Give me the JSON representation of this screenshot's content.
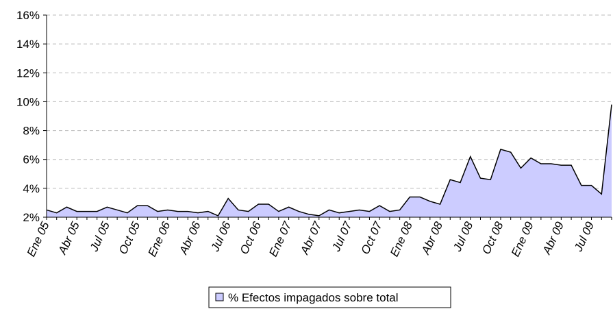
{
  "chart_data": {
    "type": "area",
    "categories": [
      "Ene 05",
      null,
      null,
      "Abr 05",
      null,
      null,
      "Jul 05",
      null,
      null,
      "Oct 05",
      null,
      null,
      "Ene 06",
      null,
      null,
      "Abr 06",
      null,
      null,
      "Jul 06",
      null,
      null,
      "Oct 06",
      null,
      null,
      "Ene 07",
      null,
      null,
      "Abr 07",
      null,
      null,
      "Jul 07",
      null,
      null,
      "Oct 07",
      null,
      null,
      "Ene 08",
      null,
      null,
      "Abr 08",
      null,
      null,
      "Jul 08",
      null,
      null,
      "Oct 08",
      null,
      null,
      "Ene 09",
      null,
      null,
      "Abr 09",
      null,
      null,
      "Jul 09",
      null,
      null
    ],
    "series": [
      {
        "name": "% Efectos impagados sobre total",
        "color": "#ccccff",
        "line_color": "#000000",
        "values": [
          2.5,
          2.3,
          2.7,
          2.4,
          2.4,
          2.4,
          2.7,
          2.5,
          2.3,
          2.8,
          2.8,
          2.4,
          2.5,
          2.4,
          2.4,
          2.3,
          2.4,
          2.1,
          3.3,
          2.5,
          2.4,
          2.9,
          2.9,
          2.4,
          2.7,
          2.4,
          2.2,
          2.1,
          2.5,
          2.3,
          2.4,
          2.5,
          2.4,
          2.8,
          2.4,
          2.5,
          3.4,
          3.4,
          3.1,
          2.9,
          4.6,
          4.4,
          6.2,
          4.7,
          4.6,
          6.7,
          6.5,
          5.4,
          6.1,
          5.7,
          5.7,
          5.6,
          5.6,
          4.2,
          4.2,
          3.6,
          9.8
        ]
      }
    ],
    "ylim": [
      2,
      16
    ],
    "yticks": [
      {
        "value": 2,
        "label": "2%"
      },
      {
        "value": 4,
        "label": "4%"
      },
      {
        "value": 6,
        "label": "6%"
      },
      {
        "value": 8,
        "label": "8%"
      },
      {
        "value": 10,
        "label": "10%"
      },
      {
        "value": 12,
        "label": "12%"
      },
      {
        "value": 14,
        "label": "14%"
      },
      {
        "value": 16,
        "label": "16%"
      }
    ],
    "grid": true,
    "legend": "bottom"
  }
}
